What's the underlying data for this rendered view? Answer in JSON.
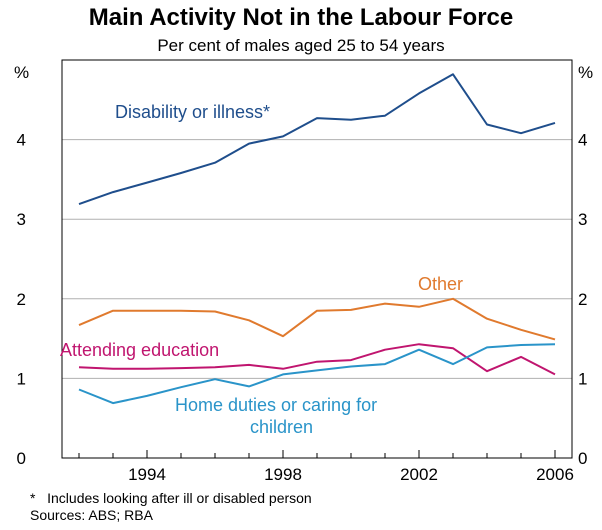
{
  "chart_data": {
    "type": "line",
    "title": "Main Activity Not in the Labour Force",
    "subtitle": "Per cent of males aged 25 to 54 years",
    "ylabel_left": "%",
    "ylabel_right": "%",
    "xlim": [
      1991.5,
      2006.5
    ],
    "ylim": [
      0,
      5
    ],
    "yticks": [
      0,
      1,
      2,
      3,
      4
    ],
    "xticks": [
      1994,
      1998,
      2002,
      2006
    ],
    "x": [
      1992,
      1993,
      1994,
      1995,
      1996,
      1997,
      1998,
      1999,
      2000,
      2001,
      2002,
      2003,
      2004,
      2005,
      2006
    ],
    "series": [
      {
        "name": "Disability or illness*",
        "color": "#1f4e8c",
        "values": [
          3.19,
          3.34,
          3.46,
          3.58,
          3.71,
          3.95,
          4.04,
          4.27,
          4.25,
          4.3,
          4.58,
          4.82,
          4.19,
          4.08,
          4.21
        ]
      },
      {
        "name": "Other",
        "color": "#e07a2e",
        "values": [
          1.67,
          1.85,
          1.85,
          1.85,
          1.84,
          1.73,
          1.53,
          1.85,
          1.86,
          1.94,
          1.9,
          2.0,
          1.75,
          1.61,
          1.49
        ]
      },
      {
        "name": "Attending education",
        "color": "#c0156f",
        "values": [
          1.14,
          1.12,
          1.12,
          1.13,
          1.14,
          1.17,
          1.12,
          1.21,
          1.23,
          1.36,
          1.43,
          1.38,
          1.09,
          1.27,
          1.05
        ]
      },
      {
        "name": "Home duties or caring for children",
        "color": "#2a94c9",
        "values": [
          0.86,
          0.69,
          0.78,
          0.89,
          0.99,
          0.9,
          1.05,
          1.1,
          1.15,
          1.18,
          1.36,
          1.18,
          1.39,
          1.42,
          1.43
        ]
      }
    ],
    "series_labels": {
      "disability": "Disability or illness*",
      "other": "Other",
      "education": "Attending education",
      "home_line1": "Home duties or caring for",
      "home_line2": "children"
    },
    "grid": "horizontal"
  },
  "notes": {
    "footnote": "*   Includes looking after ill or disabled person",
    "sources": "Sources: ABS; RBA"
  }
}
